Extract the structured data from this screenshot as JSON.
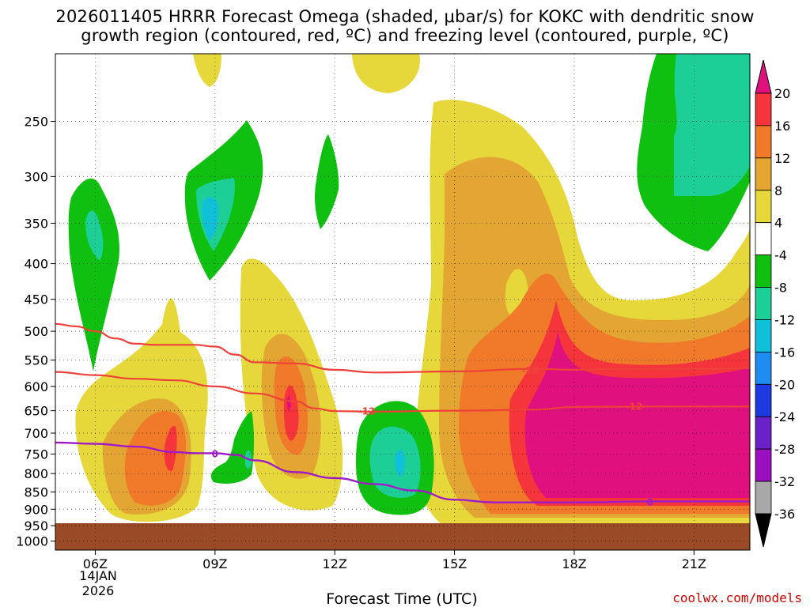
{
  "title": {
    "line1": "2026011405 HRRR Forecast Omega (shaded, μbar/s) for KOKC with dendritic snow",
    "line2": "growth region (contoured, red, ºC) and freezing level (contoured, purple, ºC)"
  },
  "branding": "coolwx.com/models",
  "chart_data": {
    "type": "heatmap",
    "xlabel": "Forecast Time (UTC)",
    "x_ticks": [
      "06Z",
      "09Z",
      "12Z",
      "15Z",
      "18Z",
      "21Z"
    ],
    "x_tick_hours": [
      6,
      9,
      12,
      15,
      18,
      21
    ],
    "x_date_label": [
      "14JAN",
      "2026"
    ],
    "xlim_hours": [
      5,
      22.4
    ],
    "y_axis": "pressure (hPa), inverted",
    "y_ticks": [
      250,
      300,
      350,
      400,
      450,
      500,
      550,
      600,
      650,
      700,
      750,
      800,
      850,
      900,
      950,
      1000
    ],
    "ylim_hpa": [
      200,
      1030
    ],
    "grid": true,
    "colorbar": {
      "levels": [
        -36,
        -32,
        -28,
        -24,
        -20,
        -16,
        -12,
        -8,
        -4,
        4,
        8,
        12,
        16,
        20
      ],
      "labels": [
        "20",
        "16",
        "12",
        "8",
        "4",
        "-4",
        "-8",
        "-12",
        "-16",
        "-20",
        "-24",
        "-28",
        "-32",
        "-36"
      ],
      "colors": {
        "above_20": "#e0117f",
        "16_20": "#f5343c",
        "12_16": "#f07a2a",
        "8_12": "#e3a633",
        "4_8": "#e6d83a",
        "-4_4": "#ffffff",
        "-8_-4": "#10c010",
        "-12_-8": "#1ccf96",
        "-16_-12": "#10c0d8",
        "-20_-16": "#1f8cf0",
        "-24_-20": "#1c3ae0",
        "-28_-24": "#6a22c8",
        "-32_-28": "#9a10c0",
        "-36_-32": "#a8a8a8",
        "below_-36": "#000000"
      }
    },
    "ground_color": "#9a4a26",
    "contours": {
      "dgz_upper": {
        "label": "-18",
        "color": "#f0403a",
        "points": [
          [
            5,
            488
          ],
          [
            5.5,
            492
          ],
          [
            6.0,
            500
          ],
          [
            6.5,
            512
          ],
          [
            7.0,
            521
          ],
          [
            7.5,
            523
          ],
          [
            8.5,
            523
          ],
          [
            9.0,
            526
          ],
          [
            9.5,
            540
          ],
          [
            10.0,
            554
          ],
          [
            11.0,
            556
          ],
          [
            12.0,
            568
          ],
          [
            13.0,
            573
          ],
          [
            15.0,
            571
          ],
          [
            17.0,
            566
          ],
          [
            18.0,
            568
          ],
          [
            19.0,
            566
          ],
          [
            21.0,
            566
          ],
          [
            22.4,
            565
          ]
        ]
      },
      "dgz_lower": {
        "label": "-12",
        "color": "#f0403a",
        "points": [
          [
            5,
            572
          ],
          [
            6.0,
            578
          ],
          [
            7.0,
            585
          ],
          [
            8.0,
            588
          ],
          [
            9.0,
            600
          ],
          [
            10.0,
            614
          ],
          [
            11.0,
            630
          ],
          [
            11.5,
            645
          ],
          [
            12.0,
            651
          ],
          [
            13.0,
            652
          ],
          [
            15.0,
            650
          ],
          [
            17.0,
            648
          ],
          [
            18.0,
            642
          ],
          [
            20.0,
            641
          ],
          [
            22.4,
            641
          ]
        ]
      },
      "freezing": {
        "label": "0",
        "color": "#a01ac8",
        "points": [
          [
            5,
            722
          ],
          [
            6.0,
            725
          ],
          [
            7.0,
            732
          ],
          [
            8.0,
            745
          ],
          [
            8.5,
            748
          ],
          [
            9.0,
            748
          ],
          [
            9.5,
            752
          ],
          [
            10.0,
            766
          ],
          [
            11.0,
            796
          ],
          [
            12.0,
            812
          ],
          [
            13.0,
            828
          ],
          [
            14.0,
            846
          ],
          [
            15.0,
            872
          ],
          [
            16.0,
            880
          ],
          [
            17.0,
            880
          ],
          [
            18.0,
            880
          ],
          [
            20.0,
            877
          ],
          [
            22.4,
            877
          ]
        ]
      }
    },
    "label_markers": {
      "dgz_upper_at": [
        16.9,
        568
      ],
      "dgz_lower_12_left": [
        12.8,
        650
      ],
      "dgz_lower_12_right": [
        19.5,
        640
      ],
      "freezing_left": [
        9.0,
        748
      ],
      "freezing_right": [
        19.9,
        877
      ]
    }
  }
}
